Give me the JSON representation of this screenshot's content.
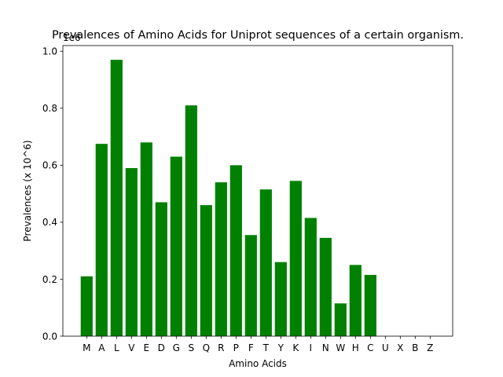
{
  "chart_data": {
    "type": "bar",
    "title": "Prevalences of Amino Acids for Uniprot sequences of a certain organism.",
    "xlabel": "Amino Acids",
    "ylabel": "Prevalences (x 10^6)",
    "offset_label": "1e6",
    "categories": [
      "M",
      "A",
      "L",
      "V",
      "E",
      "D",
      "G",
      "S",
      "Q",
      "R",
      "P",
      "F",
      "T",
      "Y",
      "K",
      "I",
      "N",
      "W",
      "H",
      "C",
      "U",
      "X",
      "B",
      "Z"
    ],
    "values": [
      0.21,
      0.675,
      0.97,
      0.59,
      0.68,
      0.47,
      0.63,
      0.81,
      0.46,
      0.54,
      0.6,
      0.355,
      0.515,
      0.26,
      0.545,
      0.415,
      0.345,
      0.115,
      0.25,
      0.215,
      0,
      0,
      0,
      0
    ],
    "value_scale": 1000000,
    "ylim": [
      0,
      1.02
    ],
    "yticks": [
      "0.0",
      "0.2",
      "0.4",
      "0.6",
      "0.8",
      "1.0"
    ],
    "bar_color": "#008000",
    "grid": false,
    "legend": "none"
  }
}
